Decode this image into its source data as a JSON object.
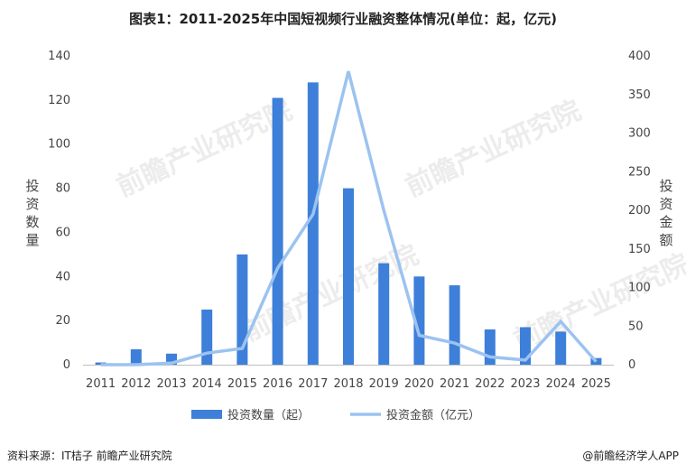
{
  "chart_data": {
    "type": "bar",
    "title": "图表1：2011-2025年中国短视频行业融资整体情况(单位：起，亿元)",
    "categories": [
      "2011",
      "2012",
      "2013",
      "2014",
      "2015",
      "2016",
      "2017",
      "2018",
      "2019",
      "2020",
      "2021",
      "2022",
      "2023",
      "2024",
      "2025"
    ],
    "series": [
      {
        "name": "投资数量（起）",
        "type": "bar",
        "axis": "left",
        "color": "#3d7fd9",
        "values": [
          1,
          7,
          5,
          25,
          50,
          121,
          128,
          80,
          46,
          40,
          36,
          16,
          17,
          15,
          3
        ]
      },
      {
        "name": "投资金额（亿元）",
        "type": "line",
        "axis": "right",
        "color": "#9cc3f0",
        "values": [
          0,
          0,
          2,
          15,
          21,
          125,
          195,
          380,
          200,
          38,
          28,
          10,
          6,
          56,
          4
        ]
      }
    ],
    "ylabel_left": "投资数量",
    "ylabel_right": "投资金额",
    "ylim_left": [
      0,
      140
    ],
    "ylim_right": [
      0,
      400
    ],
    "yticks_left": [
      0,
      20,
      40,
      60,
      80,
      100,
      120,
      140
    ],
    "yticks_right": [
      0,
      50,
      100,
      150,
      200,
      250,
      300,
      350,
      400
    ],
    "legend_position": "bottom",
    "grid": false
  },
  "footer": {
    "source": "资料来源：IT桔子 前瞻产业研究院",
    "brand": "@前瞻经济学人APP"
  },
  "watermark": "前瞻产业研究院"
}
